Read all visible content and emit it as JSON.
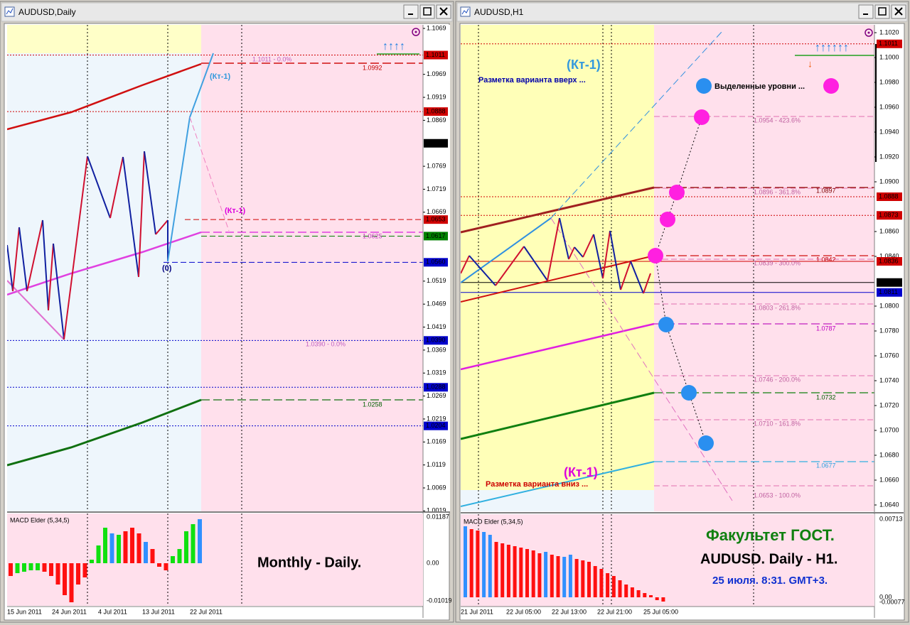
{
  "left_window": {
    "title": "AUDUSD,Daily",
    "price_axis": [
      "1.1069",
      "1.0969",
      "1.0919",
      "1.0869",
      "1.0769",
      "1.0719",
      "1.0669",
      "1.0519",
      "1.0469",
      "1.0419",
      "1.0369",
      "1.0319",
      "1.0269",
      "1.0219",
      "1.0169",
      "1.0119",
      "1.0069",
      "1.0019"
    ],
    "price_tags": [
      {
        "text": "1.1011",
        "color": "#d00000"
      },
      {
        "text": "1.0888",
        "color": "#d00000"
      },
      {
        "text": "1.0819",
        "color": "#000000"
      },
      {
        "text": "1.0653",
        "color": "#d00000"
      },
      {
        "text": "1.0617",
        "color": "#008000"
      },
      {
        "text": "1.0560",
        "color": "#0000cc"
      },
      {
        "text": "1.0390",
        "color": "#0000cc"
      },
      {
        "text": "1.0288",
        "color": "#0000cc"
      },
      {
        "text": "1.0204",
        "color": "#0000cc"
      }
    ],
    "level_labels": [
      "1.1011 - 0.0%",
      "1.0992",
      "1.0625",
      "1.0390 - 0.0%",
      "1.0258"
    ],
    "annotations": [
      "(Кт-1)",
      "(Кт-1)",
      "(0)"
    ],
    "caption": "Monthly - Daily.",
    "indicator": {
      "name": "MACD Elder (5,34,5)",
      "axis": [
        "0.01187",
        "0.00",
        "-0.01019"
      ]
    },
    "dates": [
      "15 Jun 2011",
      "24 Jun 2011",
      "4 Jul 2011",
      "13 Jul 2011",
      "22 Jul 2011"
    ]
  },
  "right_window": {
    "title": "AUDUSD,H1",
    "price_axis": [
      "1.1020",
      "1.1000",
      "1.0980",
      "1.0960",
      "1.0940",
      "1.0920",
      "1.0900",
      "1.0860",
      "1.0840",
      "1.0800",
      "1.0780",
      "1.0760",
      "1.0740",
      "1.0720",
      "1.0700",
      "1.0680",
      "1.0660",
      "1.0640"
    ],
    "price_tags": [
      {
        "text": "1.1011",
        "color": "#d00000"
      },
      {
        "text": "1.0888",
        "color": "#d00000"
      },
      {
        "text": "1.0873",
        "color": "#d00000"
      },
      {
        "text": "1.0836",
        "color": "#d00000"
      },
      {
        "text": "1.0819",
        "color": "#000000"
      },
      {
        "text": "1.0811",
        "color": "#0000cc"
      }
    ],
    "level_labels": [
      "1.0954 - 423.6%",
      "1.0896 - 361.8%",
      "1.0897",
      "1.0839 - 300.0%",
      "1.0842",
      "1.0803 - 261.8%",
      "1.0787",
      "1.0746 - 200.0%",
      "1.0732",
      "1.0710 - 161.8%",
      "1.0677",
      "1.0653 - 100.0%"
    ],
    "annotations": [
      "(Кт-1)",
      "Разметка варианта вверх ...",
      "Выделенные уровни ...",
      "(Кт-1)",
      "Разметка варианта вниз ..."
    ],
    "captions": [
      "Факультет ГОСТ.",
      "AUDUSD. Daily - H1.",
      "25 июля. 8:31. GMT+3."
    ],
    "indicator": {
      "name": "MACD Elder (5,34,5)",
      "axis": [
        "0.00713",
        "0.00",
        "-0.00077"
      ]
    },
    "dates": [
      "21 Jul 2011",
      "22 Jul 05:00",
      "22 Jul 13:00",
      "22 Jul 21:00",
      "25 Jul 05:00"
    ]
  }
}
